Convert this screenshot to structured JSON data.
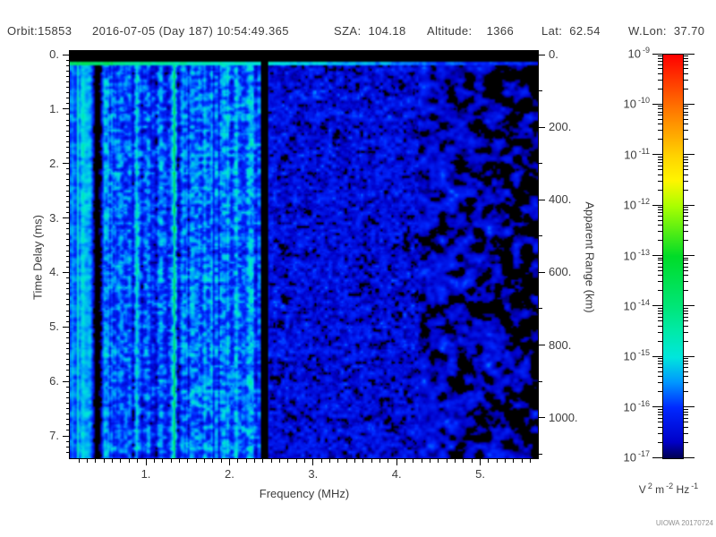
{
  "header": {
    "segments": [
      "Orbit:15853",
      "2016-07-05 (Day 187) 10:54:49.365",
      "SZA:  104.18",
      "Altitude:    1366",
      "Lat:  62.54",
      "W.Lon:  37.70"
    ]
  },
  "chart_data": {
    "type": "heatmap",
    "title": "Orbit:15853  2016-07-05 (Day 187) 10:54:49.365  SZA: 104.18  Altitude: 1366  Lat: 62.54  W.Lon: 37.70",
    "x_axis": {
      "label": "Frequency (MHz)",
      "range_mhz": [
        0.09,
        5.69
      ],
      "major_ticks": [
        {
          "value": 1,
          "label": "1."
        },
        {
          "value": 2,
          "label": "2."
        },
        {
          "value": 3,
          "label": "3."
        },
        {
          "value": 4,
          "label": "4."
        },
        {
          "value": 5,
          "label": "5."
        }
      ],
      "minor_step_mhz": 0.1
    },
    "y_axis_left": {
      "label": "Time Delay (ms)",
      "range_ms": [
        -0.07,
        7.41
      ],
      "direction": "increases-downward",
      "major_ticks": [
        {
          "value": 0,
          "label": "0."
        },
        {
          "value": 1,
          "label": "1."
        },
        {
          "value": 2,
          "label": "2."
        },
        {
          "value": 3,
          "label": "3."
        },
        {
          "value": 4,
          "label": "4."
        },
        {
          "value": 5,
          "label": "5."
        },
        {
          "value": 6,
          "label": "6."
        },
        {
          "value": 7,
          "label": "7."
        }
      ],
      "minor_step_ms": 0.1
    },
    "y_axis_right": {
      "label": "Apparent Range (km)",
      "range_km": [
        -10,
        1112
      ],
      "major_ticks": [
        {
          "value": 0,
          "label": "0."
        },
        {
          "value": 200,
          "label": "200."
        },
        {
          "value": 400,
          "label": "400."
        },
        {
          "value": 600,
          "label": "600."
        },
        {
          "value": 800,
          "label": "800."
        },
        {
          "value": 1000,
          "label": "1000."
        }
      ],
      "minor_step_km": 100
    },
    "colorbar": {
      "scale": "log10",
      "base_label": "10",
      "tick_exponents": [
        "-9",
        "-10",
        "-11",
        "-12",
        "-13",
        "-14",
        "-15",
        "-16",
        "-17"
      ],
      "range": [
        "1e-17",
        "1e-9"
      ],
      "units_parts": [
        {
          "base": "V",
          "sup": "2"
        },
        {
          "base": "m",
          "sup": "-2"
        },
        {
          "base": "Hz",
          "sup": "-1"
        }
      ],
      "units_text": "V^2 m^-2 Hz^-1",
      "gradient_stops": [
        {
          "pos": 0.0,
          "color": "#000050"
        },
        {
          "pos": 0.04,
          "color": "#0000c8"
        },
        {
          "pos": 0.125,
          "color": "#0028ff"
        },
        {
          "pos": 0.1875,
          "color": "#0096ff"
        },
        {
          "pos": 0.25,
          "color": "#00e6dc"
        },
        {
          "pos": 0.3125,
          "color": "#00eaaa"
        },
        {
          "pos": 0.375,
          "color": "#00e678"
        },
        {
          "pos": 0.5,
          "color": "#00dc28"
        },
        {
          "pos": 0.625,
          "color": "#aaff00"
        },
        {
          "pos": 0.6875,
          "color": "#fff500"
        },
        {
          "pos": 0.75,
          "color": "#ffd200"
        },
        {
          "pos": 0.875,
          "color": "#ff6e00"
        },
        {
          "pos": 1.0,
          "color": "#ff0000"
        }
      ],
      "below_floor_color": "#000000"
    },
    "credit": "UIOWA 20170724",
    "spectrogram": {
      "description": "Ionospheric sounding radargram: noisy cyan-blue field brightest below 2.4 MHz, dimmer blue mottle 2.45-4.25 MHz, sparse blue blobs on black above 4.25 MHz",
      "features": [
        {
          "name": "top-black-band",
          "time_delay_ms": [
            0,
            0.118
          ]
        },
        {
          "name": "bright-horizontal-line",
          "time_delay_ms": [
            0.118,
            0.21
          ],
          "log10_power": -14,
          "note": "green-tinged below 0.6 MHz, fades toward high frequency"
        },
        {
          "name": "dark-vertical-column",
          "frequency_mhz": 0.42
        },
        {
          "name": "bright-vertical-stripe",
          "frequency_mhz": 1.345,
          "log10_power": -13.5
        },
        {
          "name": "black-vertical-band",
          "frequency_mhz": [
            2.378,
            2.452
          ]
        },
        {
          "name": "noise-field-left",
          "frequency_mhz": [
            0.09,
            2.38
          ],
          "mean_log10_power": -15.9,
          "texture": "vertically streaked cyan-blue mottle"
        },
        {
          "name": "noise-field-mid",
          "frequency_mhz": [
            2.45,
            4.25
          ],
          "mean_log10_power": -16.45,
          "texture": "blue mottle with black speckle"
        },
        {
          "name": "noise-field-right",
          "frequency_mhz": [
            4.25,
            5.69
          ],
          "mean_log10_power": -16.8,
          "texture": "sparse blue blobs on black"
        }
      ],
      "render": {
        "seed": 7,
        "floor_log10": -16.93,
        "v_min": -17,
        "v_max": -9
      }
    }
  }
}
